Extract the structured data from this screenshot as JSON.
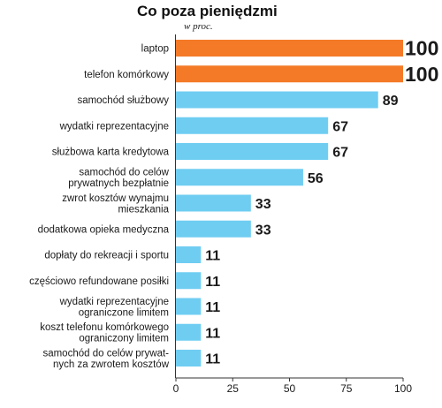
{
  "chart_data": {
    "type": "bar",
    "orientation": "horizontal",
    "title": "Co poza pieniędzmi",
    "subtitle": "w proc.",
    "categories": [
      "laptop",
      "telefon komórkowy",
      "samochód służbowy",
      "wydatki reprezentacyjne",
      "służbowa karta kredytowa",
      "samochód do celów\nprywatnych bezpłatnie",
      "zwrot kosztów wynajmu\nmieszkania",
      "dodatkowa opieka medyczna",
      "dopłaty do rekreacji i sportu",
      "częściowo refundowane posiłki",
      "wydatki reprezentacyjne\nograniczone limitem",
      "koszt telefonu komórkowego\nograniczony limitem",
      "samochód do celów prywat-\nnych za zwrotem kosztów"
    ],
    "values": [
      100,
      100,
      89,
      67,
      67,
      56,
      33,
      33,
      11,
      11,
      11,
      11,
      11
    ],
    "value_labels": [
      "100",
      "100",
      "89",
      "67",
      "67",
      "56",
      "33",
      "33",
      "11",
      "11",
      "11",
      "11",
      "11"
    ],
    "highlight_count": 2,
    "xlim": [
      0,
      100
    ],
    "xticks": [
      "0",
      "25",
      "50",
      "75",
      "100"
    ],
    "xlabel": "",
    "ylabel": "",
    "grid": false,
    "colors": {
      "highlight": "#f47a28",
      "normal": "#6fcdf2",
      "text": "#1a1a1a",
      "axis": "#333333"
    }
  }
}
